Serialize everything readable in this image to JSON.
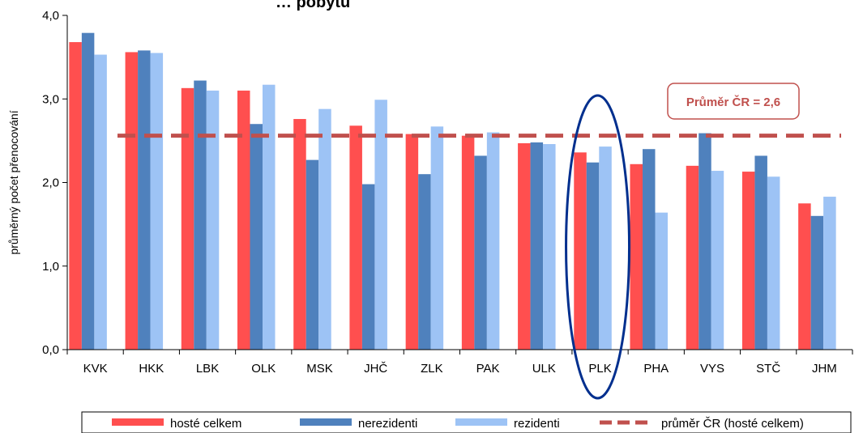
{
  "chart_data": {
    "type": "bar",
    "title": "… pobytu",
    "ylabel": "průměrný počet přenocování",
    "ylim": [
      0,
      4
    ],
    "yticks": [
      "0,0",
      "1,0",
      "2,0",
      "3,0",
      "4,0"
    ],
    "categories": [
      "KVK",
      "HKK",
      "LBK",
      "OLK",
      "MSK",
      "JHČ",
      "ZLK",
      "PAK",
      "ULK",
      "PLK",
      "PHA",
      "VYS",
      "STČ",
      "JHM"
    ],
    "series": [
      {
        "name": "hosté celkem",
        "color": "#ff4f4f",
        "values": [
          3.68,
          3.56,
          3.13,
          3.1,
          2.76,
          2.68,
          2.58,
          2.56,
          2.47,
          2.36,
          2.22,
          2.2,
          2.13,
          1.75
        ]
      },
      {
        "name": "nerezidenti",
        "color": "#4f81bd",
        "values": [
          3.79,
          3.58,
          3.22,
          2.7,
          2.27,
          1.98,
          2.1,
          2.32,
          2.48,
          2.24,
          2.4,
          2.59,
          2.32,
          1.6
        ]
      },
      {
        "name": "rezidenti",
        "color": "#9dc3f5",
        "values": [
          3.53,
          3.55,
          3.1,
          3.17,
          2.88,
          2.99,
          2.67,
          2.6,
          2.46,
          2.43,
          1.64,
          2.14,
          2.07,
          1.83
        ]
      }
    ],
    "average": {
      "name": "průměr ČR (hosté celkem)",
      "value": 2.56,
      "label": "Průměr ČR = 2,6",
      "color": "#c0504d"
    },
    "highlight": {
      "category": "PLK",
      "color": "#002f8e"
    },
    "legend_position": "bottom",
    "grid": false
  }
}
